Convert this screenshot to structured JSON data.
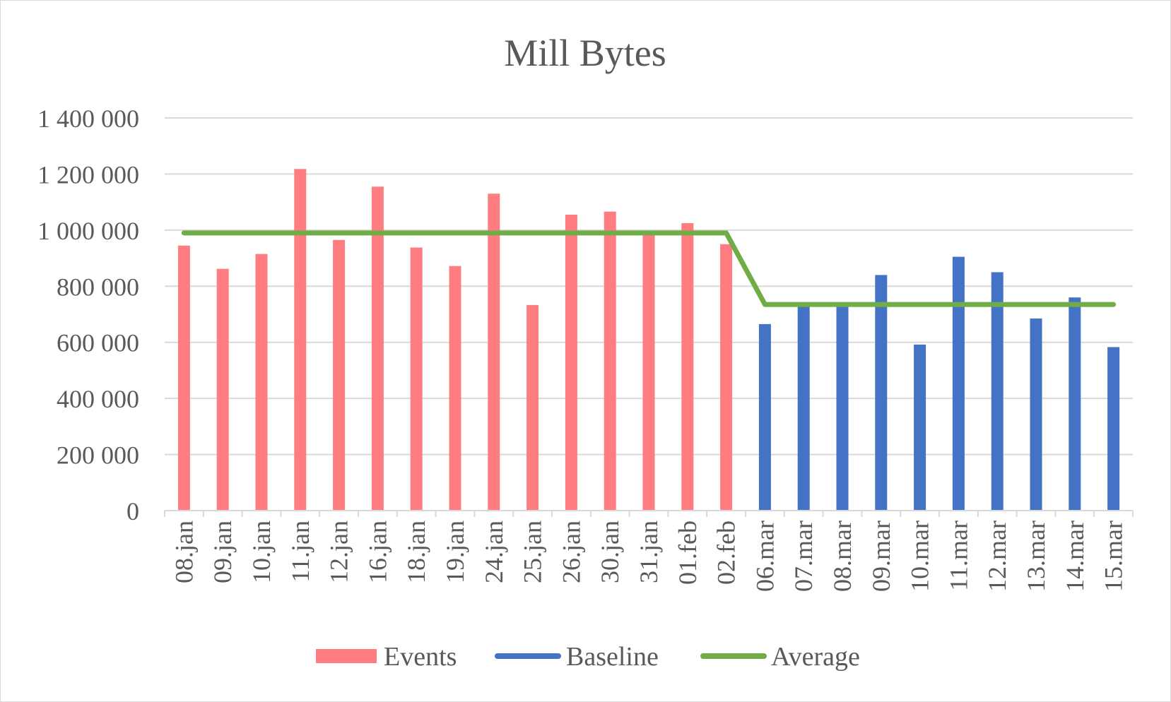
{
  "chart_data": {
    "type": "bar",
    "title": "Mill Bytes",
    "xlabel": "",
    "ylabel": "",
    "ylim": [
      0,
      1400000
    ],
    "yticks": [
      0,
      200000,
      400000,
      600000,
      800000,
      1000000,
      1200000,
      1400000
    ],
    "ytick_labels": [
      "0",
      "200 000",
      "400 000",
      "600 000",
      "800 000",
      "1 000 000",
      "1 200 000",
      "1 400 000"
    ],
    "grid": true,
    "legend_position": "bottom",
    "categories": [
      "08.jan",
      "09.jan",
      "10.jan",
      "11.jan",
      "12.jan",
      "16.jan",
      "18.jan",
      "19.jan",
      "24.jan",
      "25.jan",
      "26.jan",
      "30.jan",
      "31.jan",
      "01.feb",
      "02.feb",
      "06.mar",
      "07.mar",
      "08.mar",
      "09.mar",
      "10.mar",
      "11.mar",
      "12.mar",
      "13.mar",
      "14.mar",
      "15.mar"
    ],
    "series": [
      {
        "name": "Events",
        "kind": "bar",
        "color": "#ff7c80",
        "values": [
          945000,
          862000,
          915000,
          1218000,
          965000,
          1155000,
          938000,
          872000,
          1130000,
          733000,
          1055000,
          1066000,
          982000,
          1025000,
          950000,
          null,
          null,
          null,
          null,
          null,
          null,
          null,
          null,
          null,
          null
        ]
      },
      {
        "name": "Baseline",
        "kind": "bar",
        "color": "#4472c4",
        "values": [
          null,
          null,
          null,
          null,
          null,
          null,
          null,
          null,
          null,
          null,
          null,
          null,
          null,
          null,
          null,
          665000,
          733000,
          728000,
          840000,
          592000,
          905000,
          850000,
          685000,
          760000,
          583000
        ]
      },
      {
        "name": "Average",
        "kind": "line",
        "color": "#70ad47",
        "values": [
          990000,
          990000,
          990000,
          990000,
          990000,
          990000,
          990000,
          990000,
          990000,
          990000,
          990000,
          990000,
          990000,
          990000,
          990000,
          735000,
          735000,
          735000,
          735000,
          735000,
          735000,
          735000,
          735000,
          735000,
          735000
        ]
      }
    ]
  }
}
